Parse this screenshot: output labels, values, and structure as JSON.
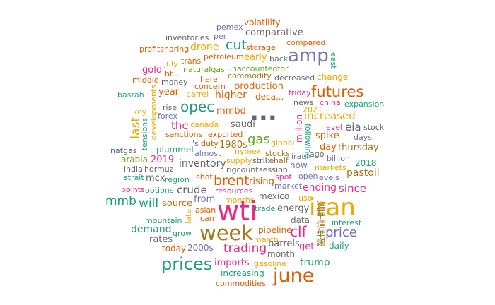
{
  "colors": {
    "green": "#1b9e77",
    "orange": "#d95f02",
    "purple": "#7570b3",
    "magenta": "#e7298a",
    "lime": "#66a61e",
    "gold": "#e6ab02",
    "brown": "#a6761d",
    "gray": "#666666"
  },
  "words": {
    "pemex": "pemex",
    "volatility": "volatility",
    "inventories": "inventories",
    "per": "per",
    "comparative": "comparative",
    "cut": "cut",
    "compared": "compared",
    "profitsharing": "profitsharing",
    "drone": "drone",
    "storage": "storage",
    "amp": "amp",
    "east": "east",
    "petroleum": "petroleum",
    "early": "early",
    "back": "back",
    "july": "july",
    "trans": "trans",
    "gold": "gold",
    "ht": "ht...",
    "naturalgas": "naturalgas",
    "unaccountedfor": "unaccountedfor",
    "middle": "middle",
    "commodity": "commodity",
    "change": "change",
    "money": "money",
    "here": "here",
    "decreased": "decreased",
    "basrah": "basrah",
    "concern": "concern",
    "production": "production",
    "futures": "futures",
    "developments": "developments",
    "year": "year",
    "barrel": "barrel",
    "higher": "higher",
    "deca": "deca...",
    "friday": "friday",
    "news": "news",
    "china": "china",
    "expansion": "expansion",
    "opec": "opec",
    "rise": "rise",
    "dots": "...",
    "y2021": "2021",
    "key": "key",
    "mmbd": "mmbd",
    "increased": "increased",
    "forex": "forex",
    "last": "last",
    "the": "the",
    "canada": "canada",
    "saudi": "saudi",
    "million": "million",
    "eia": "eia",
    "level": "level",
    "stock": "stock",
    "tensions": "tensions",
    "sanctions": "sanctions",
    "exported": "exported",
    "following": "following",
    "spike": "spike",
    "days": "days",
    "gas": "gas",
    "duty": "duty",
    "s": "'s",
    "plummet": "plummet",
    "y1980s": "1980s",
    "global": "global",
    "day": "day",
    "thursday": "thursday",
    "natgas": "natgas",
    "almost": "almost",
    "nymex": "nymex",
    "stocks": "stocks",
    "ago": "ago",
    "arabia": "arabia",
    "y2019": "2019",
    "inventory": "inventory",
    "supply": "supply",
    "strike": "strike",
    "half": "half",
    "iraqi": "iraqi",
    "billion": "billion",
    "now": "now",
    "y2018": "2018",
    "india": "india",
    "hormuz": "hormuz",
    "rigcount": "rigcount",
    "session": "session",
    "markets": "markets",
    "pastoil": "pastoil",
    "strait": "strait",
    "mcx": "mcx",
    "region": "region",
    "shot": "shot",
    "brent": "brent",
    "open": "open",
    "levels": "levels",
    "rising": "rising",
    "points": "points",
    "options": "options",
    "crude": "crude",
    "resources": "resources",
    "spot": "spot",
    "market": "market",
    "ending": "ending",
    "since": "since",
    "mmb": "mmb",
    "will": "will",
    "source": "source",
    "from": "from",
    "mexico": "mexico",
    "uso": "uso",
    "months": "months",
    "iran": "iran",
    "late": "late",
    "asian": "asian",
    "trade": "trade",
    "energy": "energy",
    "vertical_cjk": "進華進華謝",
    "mountain": "mountain",
    "can": "can",
    "wti": "wti",
    "demand": "demand",
    "week": "week",
    "grow": "grow",
    "pipeline": "pipeline",
    "march": "march...",
    "clf": "clf",
    "data": "data",
    "interest": "interest",
    "price": "price",
    "rates": "rates",
    "trading": "trading",
    "barrels": "barrels",
    "today": "today",
    "y2000s": "2000s",
    "get": "get",
    "daily": "daily",
    "month": "month",
    "prices": "prices",
    "imports": "imports",
    "gasoline": "gasoline",
    "trump": "trump",
    "increasing": "increasing",
    "june": "june",
    "commodities": "commodities"
  }
}
